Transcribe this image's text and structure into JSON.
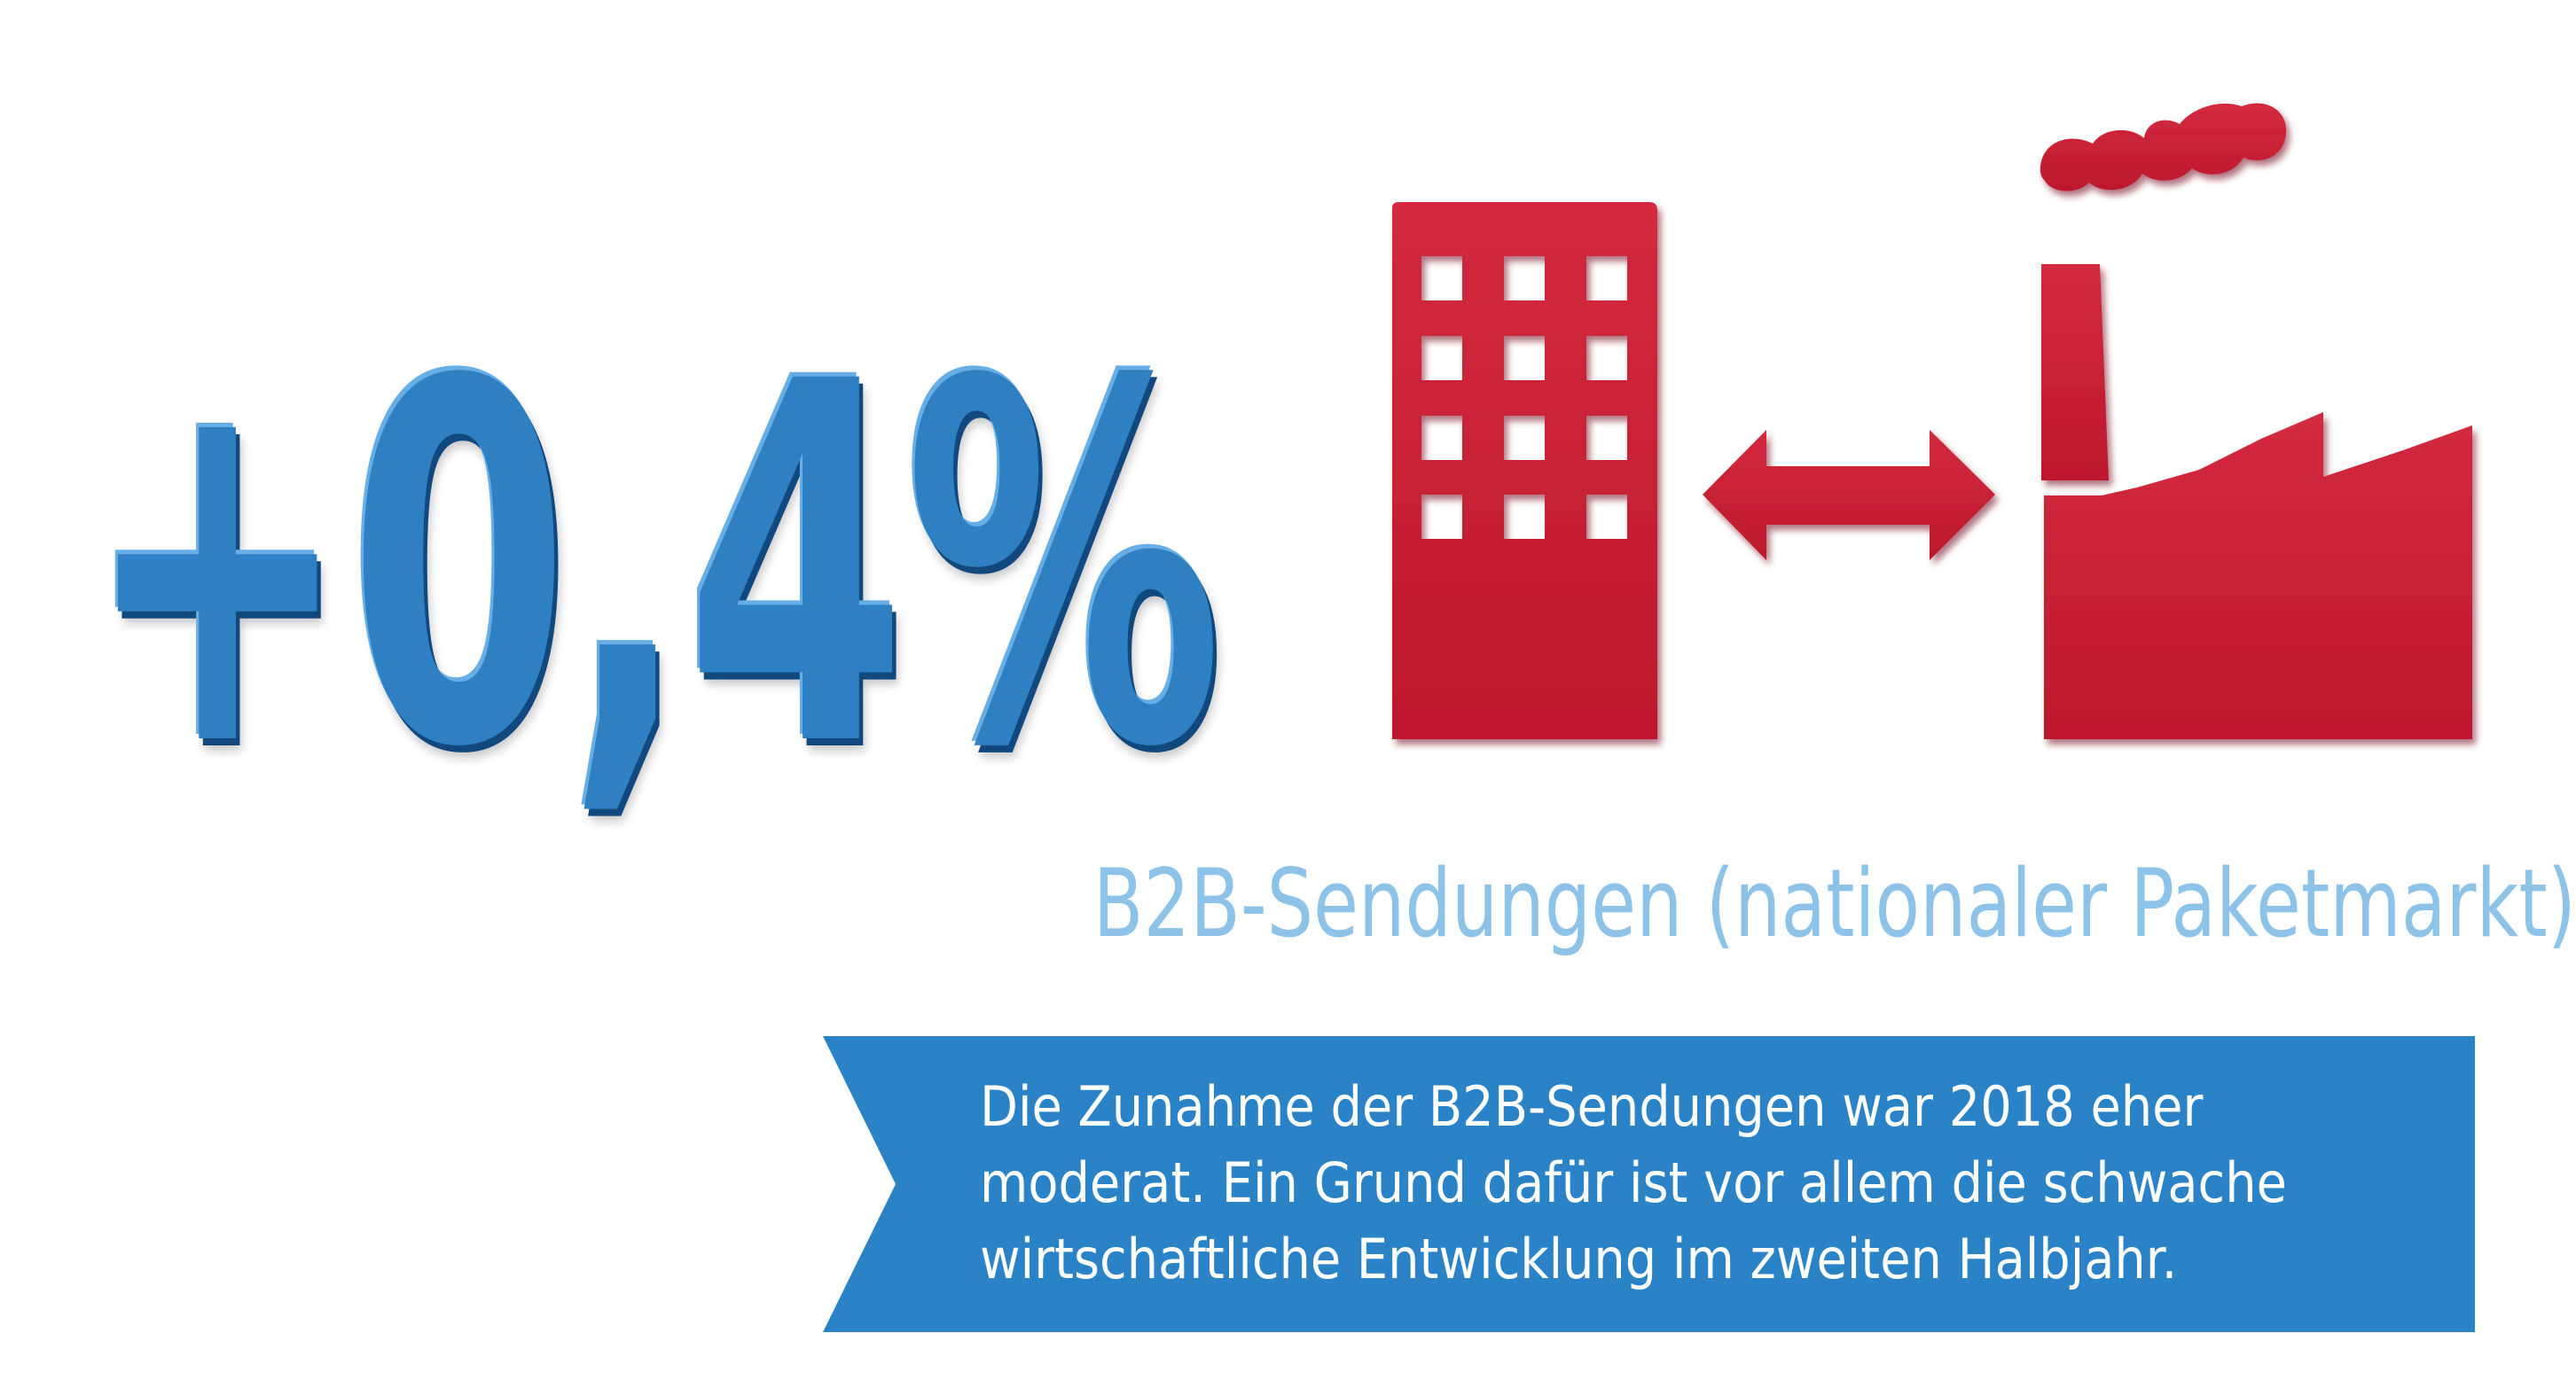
{
  "headline": {
    "value": "+0,4%"
  },
  "subtitle": "B2B-Sendungen (nationaler Paketmarkt)",
  "banner": {
    "lines": [
      "Die Zunahme der B2B-Sendungen war 2018 eher",
      "moderat. Ein Grund dafür ist vor allem die schwache",
      "wirtschaftliche Entwicklung im zweiten Halbjahr."
    ]
  },
  "icons": {
    "left": "office-building-icon",
    "middle": "double-arrow-icon",
    "right": "factory-icon"
  },
  "colors": {
    "headline": "#2f7fc3",
    "icons": "#c61a30",
    "subtitle": "#8dc3e8",
    "banner": "#2a82c7",
    "banner_text": "#ffffff"
  }
}
